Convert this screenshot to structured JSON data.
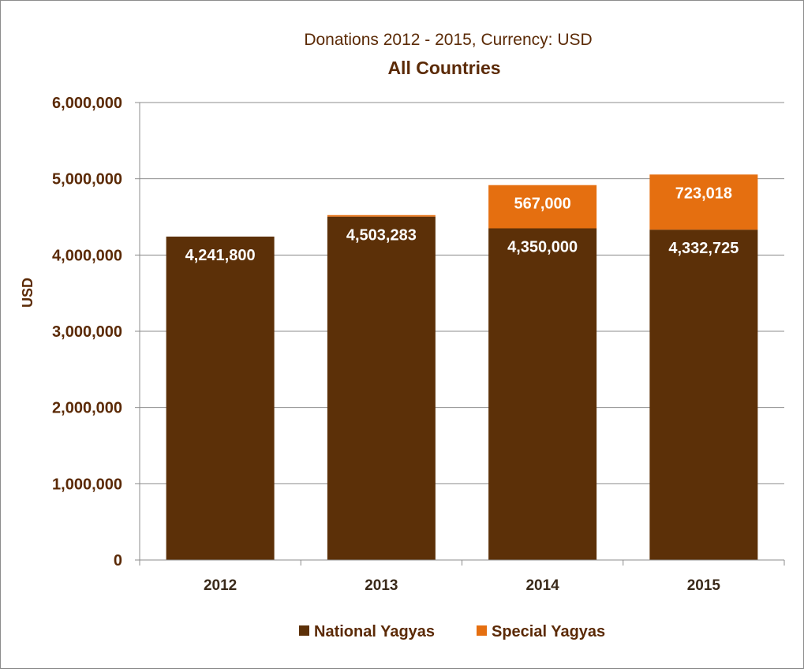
{
  "chart_data": {
    "type": "bar",
    "stacked": true,
    "title": "Donations 2012 - 2015, Currency: USD",
    "subtitle": "All Countries",
    "xlabel": "",
    "ylabel": "USD",
    "ylim": [
      0,
      6000000
    ],
    "yticks": [
      0,
      1000000,
      2000000,
      3000000,
      4000000,
      5000000,
      6000000
    ],
    "ytick_labels": [
      "0",
      "1,000,000",
      "2,000,000",
      "3,000,000",
      "4,000,000",
      "5,000,000",
      "6,000,000"
    ],
    "categories": [
      "2012",
      "2013",
      "2014",
      "2015"
    ],
    "series": [
      {
        "name": "National Yagyas",
        "color": "#5c3008",
        "values": [
          4241800,
          4503283,
          4350000,
          4332725
        ],
        "data_labels": [
          "4,241,800",
          "4,503,283",
          "4,350,000",
          "4,332,725"
        ]
      },
      {
        "name": "Special Yagyas",
        "color": "#e56f10",
        "values": [
          0,
          20000,
          567000,
          723018
        ],
        "data_labels": [
          "",
          "",
          "567,000",
          "723,018"
        ]
      }
    ],
    "grid": true,
    "legend_position": "bottom"
  }
}
